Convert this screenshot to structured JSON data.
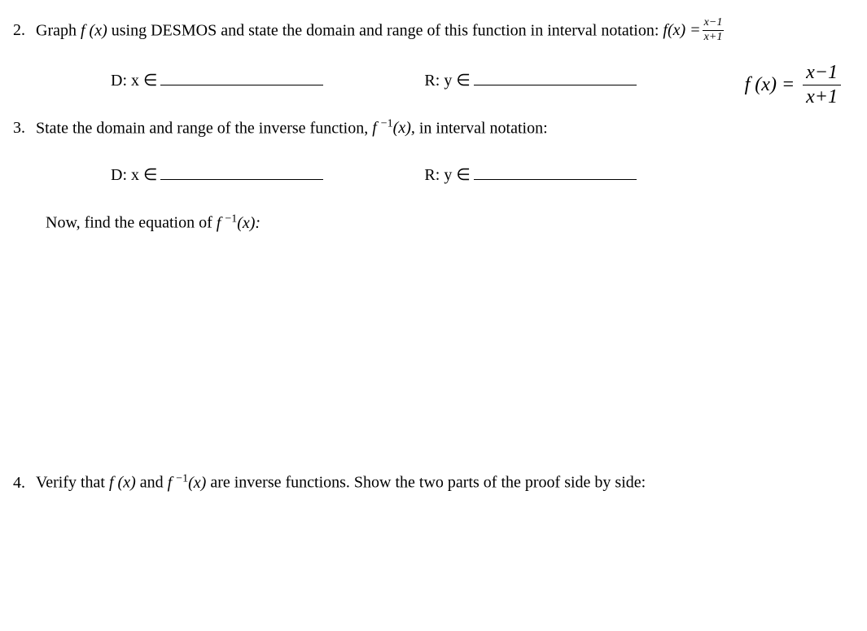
{
  "q2": {
    "number": "2.",
    "text_before": "Graph ",
    "fx": "f (x)",
    "text_mid": " using DESMOS and state the domain and range of this function in interval notation:   ",
    "fx_eq": "f(x) = ",
    "frac_num": "x−1",
    "frac_den": "x+1"
  },
  "dr": {
    "d_label": "D:   x ∈ ",
    "r_label": "R:   y ∈ "
  },
  "formula_display": {
    "fx": "f (x) = ",
    "frac_num": "x−1",
    "frac_den": "x+1"
  },
  "q3": {
    "number": "3.",
    "text_before": "State the domain and range of the inverse function, ",
    "finv": "f ",
    "finv_sup": "−1",
    "finv_after": "(x),",
    "text_after": "  in interval notation:"
  },
  "now_find": {
    "text_before": "Now, find the equation of ",
    "finv": "f ",
    "finv_sup": "−1",
    "finv_after": "(x):"
  },
  "q4": {
    "number": "4.",
    "text_before": "Verify that ",
    "fx": "f (x)",
    "text_mid": "  and  ",
    "finv": "f ",
    "finv_sup": "−1",
    "finv_after": "(x)",
    "text_after": "  are inverse functions.  Show the two parts of the proof side by side:"
  }
}
